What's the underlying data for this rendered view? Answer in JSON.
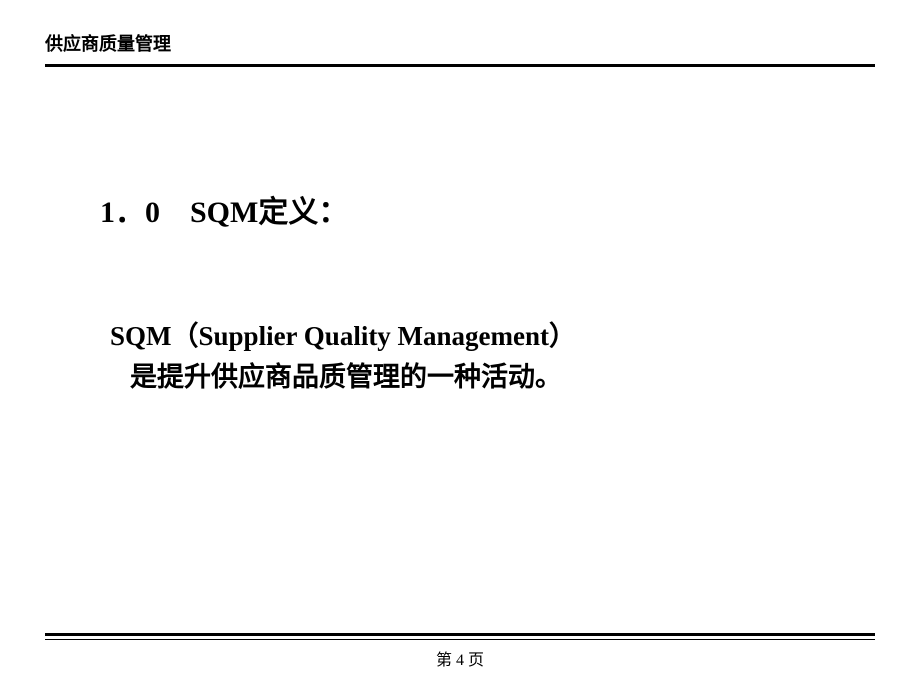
{
  "header": {
    "title": "供应商质量管理"
  },
  "content": {
    "section_heading": "1．0　SQM定义：",
    "body_line1": "SQM（Supplier Quality Management）",
    "body_line2": "是提升供应商品质管理的一种活动。"
  },
  "footer": {
    "page_number": "第 4 页"
  },
  "styles": {
    "background_color": "#ffffff",
    "text_color": "#000000",
    "border_color": "#000000",
    "header_fontsize": 18,
    "heading_fontsize": 30,
    "body_fontsize": 27,
    "footer_fontsize": 16
  }
}
